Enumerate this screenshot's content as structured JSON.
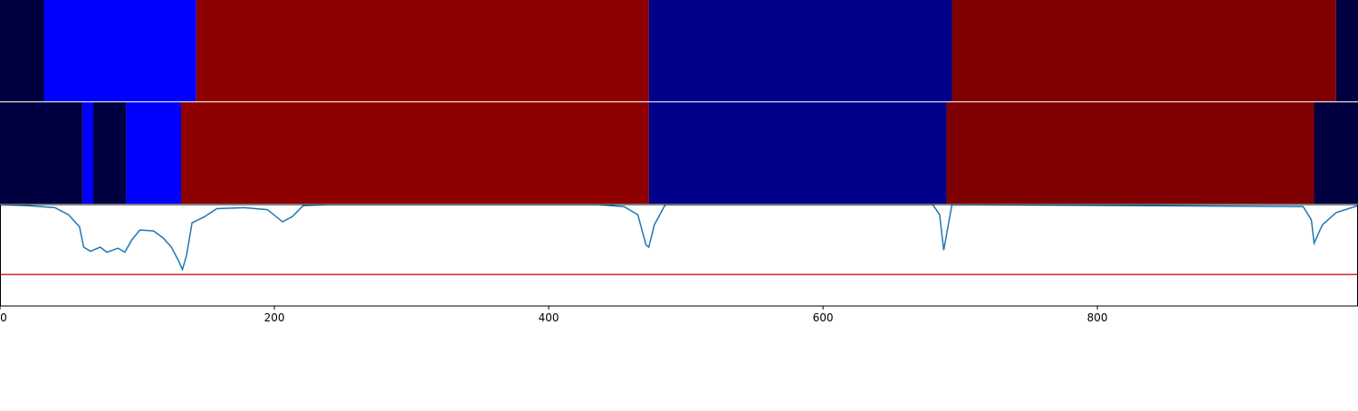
{
  "chart_data": {
    "type": "segmentation",
    "xlim": [
      0,
      990
    ],
    "xticks": [
      0,
      200,
      400,
      600,
      800
    ],
    "bands": [
      {
        "edges": [
          0,
          32,
          143,
          473,
          694,
          974,
          990
        ],
        "colors": [
          "#000040",
          "#0000ff",
          "#8f0000",
          "#00008a",
          "#7f0000",
          "#000040"
        ]
      },
      {
        "edges": [
          0,
          60,
          68,
          92,
          132,
          473,
          690,
          958,
          990
        ],
        "colors": [
          "#000040",
          "#0000ff",
          "#000040",
          "#0000ff",
          "#8f0000",
          "#00008a",
          "#7f0000",
          "#000040"
        ]
      }
    ],
    "line": {
      "color": "#1f77b4",
      "ylim": [
        0,
        1
      ],
      "x": [
        0,
        20,
        40,
        50,
        58,
        61,
        66,
        73,
        78,
        86,
        91,
        96,
        102,
        112,
        119,
        125,
        130,
        133,
        136,
        140,
        149,
        158,
        178,
        195,
        206,
        213,
        221,
        238,
        436,
        455,
        465,
        471,
        473,
        477,
        485,
        680,
        685,
        688,
        692,
        694,
        950,
        956,
        958,
        964,
        974,
        990
      ],
      "values": [
        1.0,
        0.99,
        0.97,
        0.9,
        0.78,
        0.58,
        0.54,
        0.58,
        0.53,
        0.57,
        0.53,
        0.65,
        0.75,
        0.74,
        0.67,
        0.58,
        0.45,
        0.36,
        0.5,
        0.82,
        0.88,
        0.96,
        0.97,
        0.95,
        0.83,
        0.88,
        0.99,
        1.0,
        1.0,
        0.98,
        0.9,
        0.6,
        0.58,
        0.8,
        1.0,
        1.0,
        0.9,
        0.55,
        0.85,
        1.0,
        0.98,
        0.85,
        0.62,
        0.8,
        0.92,
        0.99
      ]
    },
    "threshold": {
      "value": 0.31,
      "color": "#d62728"
    }
  }
}
